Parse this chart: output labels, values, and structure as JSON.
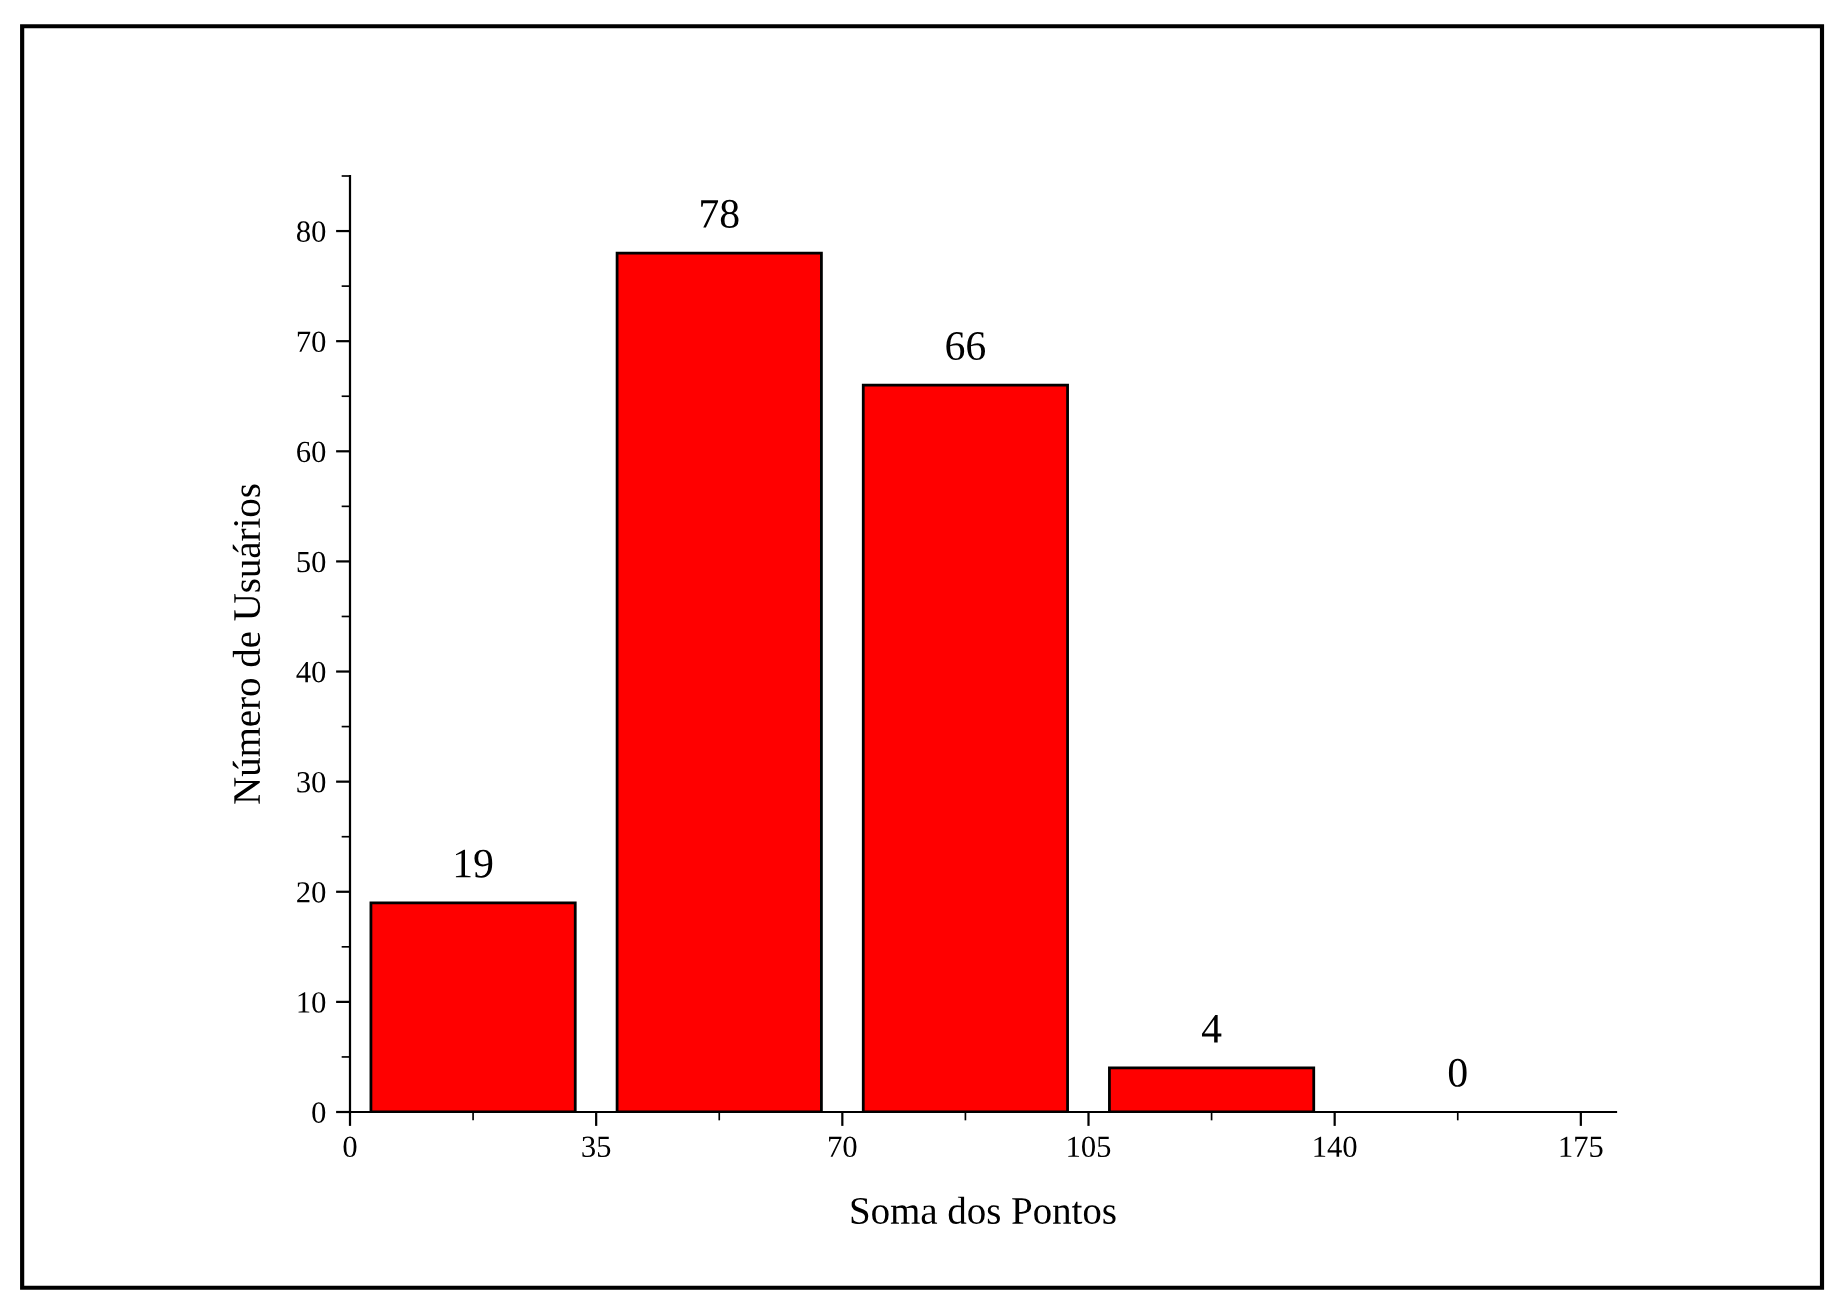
{
  "chart_data": {
    "type": "histogram",
    "xlabel": "Soma dos Pontos",
    "ylabel": "Número de Usuários",
    "bins": [
      0,
      35,
      70,
      105,
      140,
      175
    ],
    "values": [
      19,
      78,
      66,
      4,
      0
    ],
    "color": "#ff0000",
    "xlim": [
      0,
      180
    ],
    "xticks": [
      0,
      35,
      70,
      105,
      140,
      175
    ],
    "ylim": [
      0,
      85
    ],
    "yticks": [
      0,
      10,
      20,
      30,
      40,
      50,
      60,
      70,
      80
    ],
    "data_labels": true,
    "grid": false,
    "legend": false
  }
}
